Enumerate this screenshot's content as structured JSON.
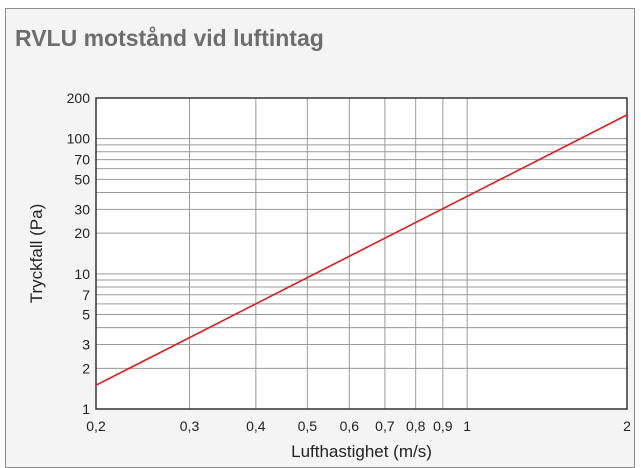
{
  "chart_data": {
    "type": "line",
    "title": "RVLU motstånd vid luftintag",
    "xlabel": "Lufthastighet (m/s)",
    "ylabel": "Tryckfall (Pa)",
    "xscale": "log",
    "yscale": "log",
    "xlim": [
      0.2,
      2
    ],
    "ylim": [
      1,
      200
    ],
    "grid": true,
    "x_ticks": [
      {
        "value": 0.2,
        "label": "0,2"
      },
      {
        "value": 0.3,
        "label": "0,3"
      },
      {
        "value": 0.4,
        "label": "0,4"
      },
      {
        "value": 0.5,
        "label": "0,5"
      },
      {
        "value": 0.6,
        "label": "0,6"
      },
      {
        "value": 0.7,
        "label": "0,7"
      },
      {
        "value": 0.8,
        "label": "0,8"
      },
      {
        "value": 0.9,
        "label": "0,9"
      },
      {
        "value": 1,
        "label": "1"
      },
      {
        "value": 2,
        "label": "2"
      }
    ],
    "y_ticks": [
      {
        "value": 1,
        "label": "1"
      },
      {
        "value": 2,
        "label": "2"
      },
      {
        "value": 3,
        "label": "3"
      },
      {
        "value": 5,
        "label": "5"
      },
      {
        "value": 7,
        "label": "7"
      },
      {
        "value": 10,
        "label": "10"
      },
      {
        "value": 20,
        "label": "20"
      },
      {
        "value": 30,
        "label": "30"
      },
      {
        "value": 50,
        "label": "50"
      },
      {
        "value": 70,
        "label": "70"
      },
      {
        "value": 100,
        "label": "100"
      },
      {
        "value": 200,
        "label": "200"
      }
    ],
    "series": [
      {
        "x": [
          0.2,
          2
        ],
        "y": [
          1.5,
          150
        ],
        "color": "#e01a1a"
      }
    ]
  }
}
